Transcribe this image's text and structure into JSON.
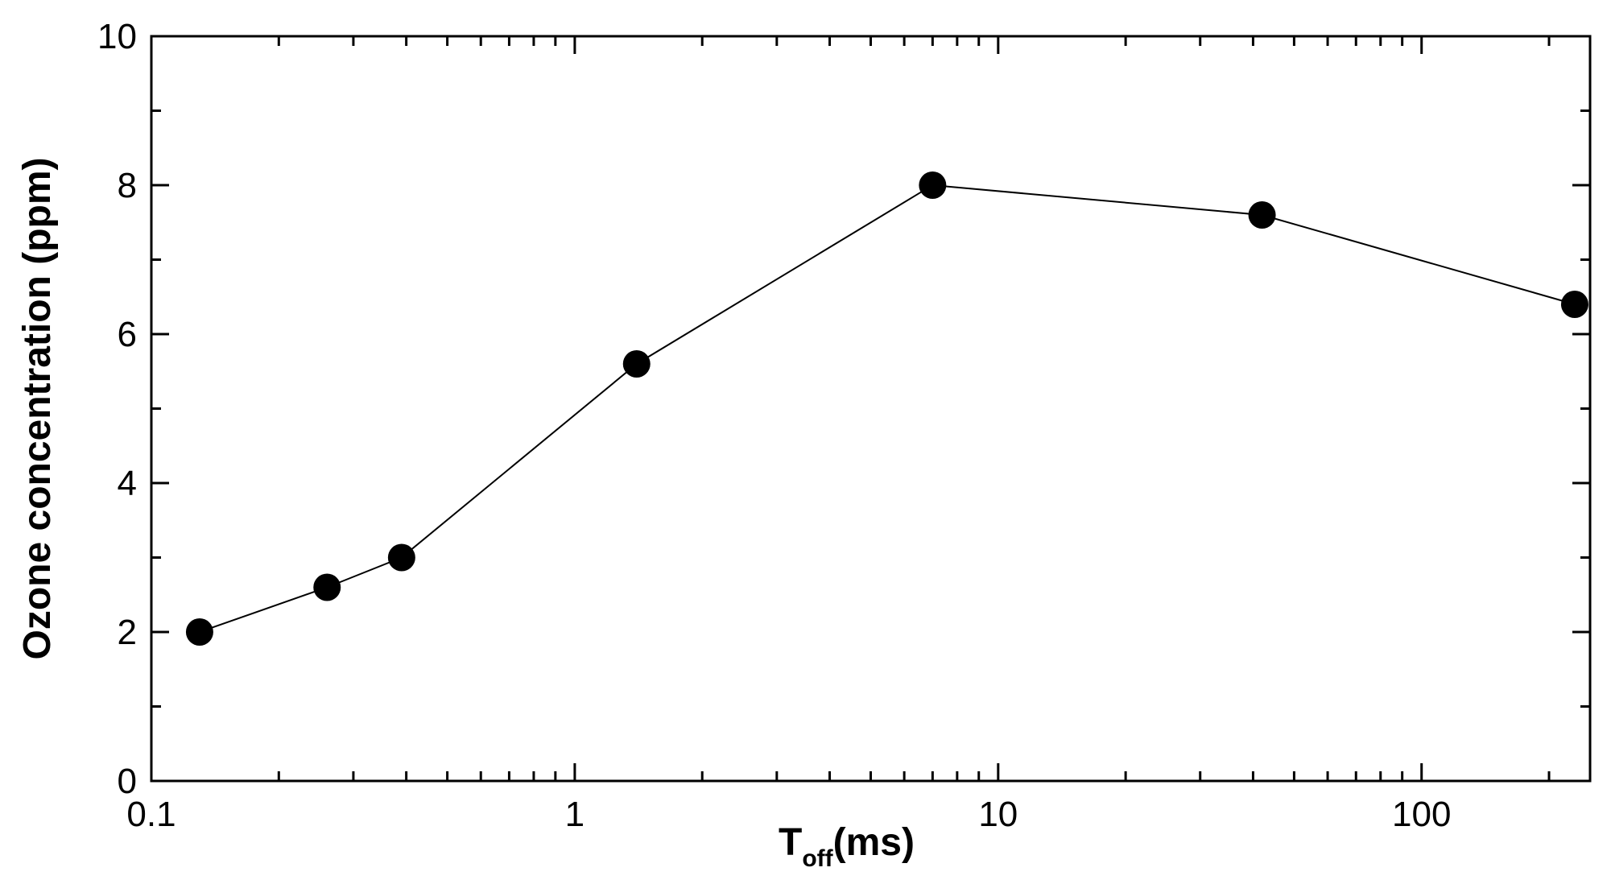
{
  "chart_data": {
    "type": "line",
    "x_scale": "log",
    "xlim": [
      0.1,
      250
    ],
    "ylim": [
      0,
      10
    ],
    "xlabel_main": "T",
    "xlabel_sub": "off",
    "xlabel_unit": "(ms)",
    "ylabel": "Ozone concentration (ppm)",
    "x_ticks": [
      {
        "value": 0.1,
        "label": "0.1"
      },
      {
        "value": 1,
        "label": "1"
      },
      {
        "value": 10,
        "label": "10"
      },
      {
        "value": 100,
        "label": "100"
      }
    ],
    "y_ticks": [
      {
        "value": 0,
        "label": "0"
      },
      {
        "value": 2,
        "label": "2"
      },
      {
        "value": 4,
        "label": "4"
      },
      {
        "value": 6,
        "label": "6"
      },
      {
        "value": 8,
        "label": "8"
      },
      {
        "value": 10,
        "label": "10"
      }
    ],
    "series": [
      {
        "x": [
          0.13,
          0.26,
          0.39,
          1.4,
          7.0,
          42,
          230
        ],
        "y": [
          2.0,
          2.6,
          3.0,
          5.6,
          8.0,
          7.6,
          6.4
        ],
        "color": "#000000"
      }
    ]
  }
}
